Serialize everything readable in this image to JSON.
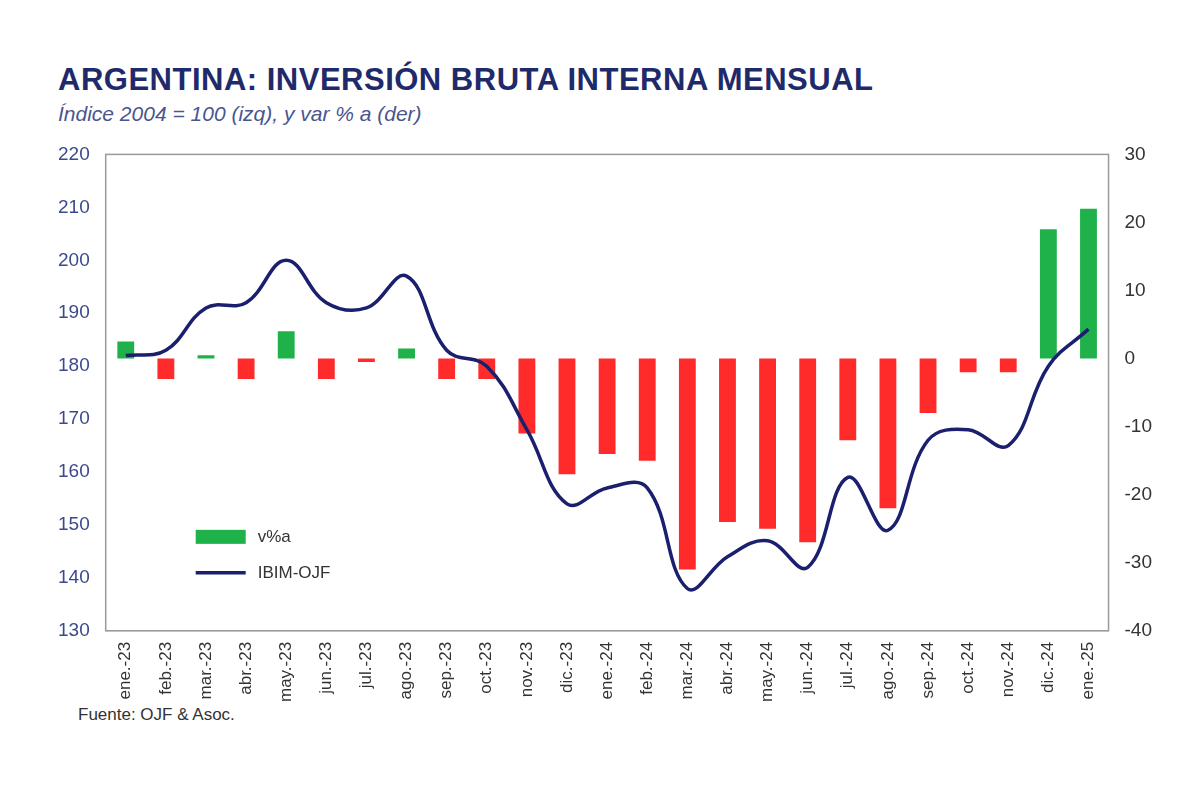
{
  "chart_data": {
    "type": "bar",
    "title": "ARGENTINA: INVERSIÓN BRUTA INTERNA MENSUAL",
    "subtitle": "Índice 2004 = 100 (izq), y var % a (der)",
    "source": "Fuente: OJF & Asoc.",
    "categories": [
      "ene.-23",
      "feb.-23",
      "mar.-23",
      "abr.-23",
      "may.-23",
      "jun.-23",
      "jul.-23",
      "ago.-23",
      "sep.-23",
      "oct.-23",
      "nov.-23",
      "dic.-23",
      "ene.-24",
      "feb.-24",
      "mar.-24",
      "abr.-24",
      "may.-24",
      "jun.-24",
      "jul.-24",
      "ago.-24",
      "sep.-24",
      "oct.-24",
      "nov.-24",
      "dic.-24",
      "ene.-25"
    ],
    "series": [
      {
        "name": "v%a",
        "type": "bar",
        "axis": "y2",
        "color": "#1fb14a",
        "colors": [
          "#1fb14a",
          "#ff2a2a",
          "#1fb14a",
          "#ff2a2a",
          "#1fb14a",
          "#ff2a2a",
          "#ff2a2a",
          "#1fb14a",
          "#ff2a2a",
          "#ff2a2a",
          "#ff2a2a",
          "#ff2a2a",
          "#ff2a2a",
          "#ff2a2a",
          "#ff2a2a",
          "#ff2a2a",
          "#ff2a2a",
          "#ff2a2a",
          "#ff2a2a",
          "#ff2a2a",
          "#ff2a2a",
          "#ff2a2a",
          "#ff2a2a",
          "#1fb14a",
          "#1fb14a"
        ],
        "values": [
          2.5,
          -3,
          0.5,
          -3,
          4,
          -3,
          -0.5,
          1.5,
          -3,
          -3,
          -11,
          -17,
          -14,
          -15,
          -31,
          -24,
          -25,
          -27,
          -12,
          -22,
          -8,
          -2,
          -2,
          19,
          22
        ]
      },
      {
        "name": "IBIM-OJF",
        "type": "line",
        "color": "#1a1f6e",
        "values": [
          182,
          183,
          191,
          192,
          200,
          192,
          191,
          197,
          183,
          180,
          168,
          154,
          157,
          157,
          138,
          144,
          147,
          142,
          159,
          149,
          166,
          168,
          165,
          180,
          187
        ]
      }
    ],
    "ylim": [
      130,
      220
    ],
    "yticks": [
      130,
      140,
      150,
      160,
      170,
      180,
      190,
      200,
      210,
      220
    ],
    "y2lim": [
      -40,
      30
    ],
    "y2ticks": [
      -40,
      -30,
      -20,
      -10,
      0,
      10,
      20,
      30
    ],
    "grid": false,
    "legend": "lower left"
  }
}
